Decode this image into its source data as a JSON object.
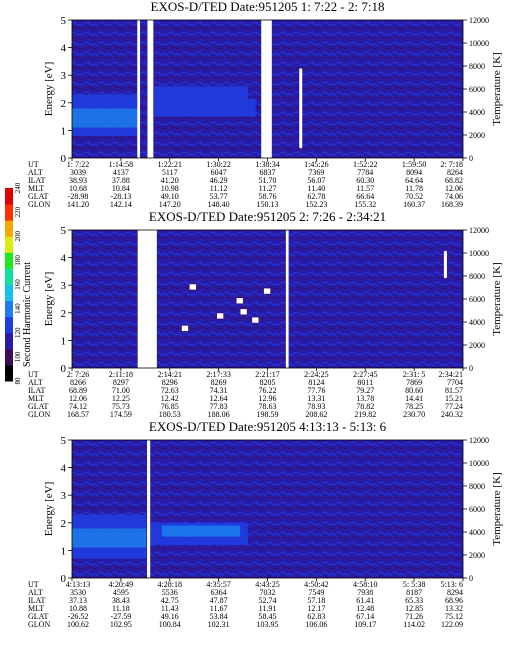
{
  "chart_data": {
    "type": "heatmap",
    "colorbar": {
      "label": "Second Harmonic Current",
      "ticks": [
        "80",
        "100",
        "120",
        "140",
        "160",
        "180",
        "200",
        "220",
        "240"
      ],
      "colors": [
        "#000000",
        "#3c0b5a",
        "#2a1ba6",
        "#1f3de0",
        "#1d7cf0",
        "#18c0ee",
        "#10e0a0",
        "#1ee820",
        "#dcec10",
        "#f5a800",
        "#ff3000",
        "#e00000"
      ]
    },
    "panels": [
      {
        "title": "EXOS-D/TED   Date:951205  1: 7:22 - 2: 7:18",
        "ylabel": "Energy [eV]",
        "y2label": "Temperature [K]",
        "yticks": [
          "0",
          "1",
          "2",
          "3",
          "4",
          "5"
        ],
        "y2ticks": [
          "0",
          "2000",
          "4000",
          "6000",
          "8000",
          "10000",
          "12000"
        ],
        "ylim": [
          0,
          5
        ],
        "y2lim": [
          0,
          12000
        ],
        "table_rows": [
          {
            "name": "UT",
            "values": [
              "1: 7:22",
              "1:14:58",
              "1:22:21",
              "1:30:22",
              "1:38:34",
              "1:45:26",
              "1:52:22",
              "1:59:50",
              "2: 7:18"
            ]
          },
          {
            "name": "ALT",
            "values": [
              "3039",
              "4137",
              "5117",
              "6047",
              "6837",
              "7369",
              "7784",
              "8094",
              "8264"
            ]
          },
          {
            "name": "ILAT",
            "values": [
              "38.93",
              "37.88",
              "41.20",
              "46.29",
              "51.70",
              "56.07",
              "60.30",
              "64.64",
              "68.82"
            ]
          },
          {
            "name": "MLT",
            "values": [
              "10.68",
              "10.84",
              "10.98",
              "11.12",
              "11.27",
              "11.40",
              "11.57",
              "11.78",
              "12.06"
            ]
          },
          {
            "name": "GLAT",
            "values": [
              "-28.98",
              "-28.13",
              "49.10",
              "53.77",
              "58.76",
              "62.78",
              "66.64",
              "70.52",
              "74.06"
            ]
          },
          {
            "name": "GLON",
            "values": [
              "141.20",
              "142.14",
              "147.20",
              "148.40",
              "150.13",
              "152.23",
              "155.32",
              "160.37",
              "168.39"
            ]
          }
        ]
      },
      {
        "title": "EXOS-D/TED   Date:951205  2: 7:26 - 2:34:21",
        "ylabel": "Energy [eV]",
        "y2label": "Temperature [K]",
        "yticks": [
          "0",
          "1",
          "2",
          "3",
          "4",
          "5"
        ],
        "y2ticks": [
          "0",
          "2000",
          "4000",
          "6000",
          "8000",
          "10000",
          "12000"
        ],
        "ylim": [
          0,
          5
        ],
        "y2lim": [
          0,
          12000
        ],
        "table_rows": [
          {
            "name": "UT",
            "values": [
              "2: 7:26",
              "2:11:18",
              "2:14:21",
              "2:17:33",
              "2:21:17",
              "2:24:25",
              "2:27:45",
              "2:31: 5",
              "2:34:21"
            ]
          },
          {
            "name": "ALT",
            "values": [
              "8266",
              "8297",
              "8296",
              "8269",
              "8205",
              "8124",
              "8011",
              "7869",
              "7704"
            ]
          },
          {
            "name": "ILAT",
            "values": [
              "68.89",
              "71.00",
              "72.63",
              "74.31",
              "76.22",
              "77.76",
              "79.27",
              "80.60",
              "81.57"
            ]
          },
          {
            "name": "MLT",
            "values": [
              "12.06",
              "12.25",
              "12.42",
              "12.64",
              "12.96",
              "13.31",
              "13.78",
              "14.41",
              "15.21"
            ]
          },
          {
            "name": "GLAT",
            "values": [
              "74.12",
              "75.73",
              "76.85",
              "77.83",
              "78.63",
              "78.93",
              "78.82",
              "78.25",
              "77.24"
            ]
          },
          {
            "name": "GLON",
            "values": [
              "168.57",
              "174.59",
              "180.53",
              "188.06",
              "198.59",
              "208.62",
              "219.82",
              "230.70",
              "240.32"
            ]
          }
        ]
      },
      {
        "title": "EXOS-D/TED   Date:951205  4:13:13 - 5:13: 6",
        "ylabel": "Energy [eV]",
        "y2label": "Temperature [K]",
        "yticks": [
          "0",
          "1",
          "2",
          "3",
          "4",
          "5"
        ],
        "y2ticks": [
          "0",
          "2000",
          "4000",
          "6000",
          "8000",
          "10000",
          "12000"
        ],
        "ylim": [
          0,
          5
        ],
        "y2lim": [
          0,
          12000
        ],
        "table_rows": [
          {
            "name": "UT",
            "values": [
              "4:13:13",
              "4:20:49",
              "4:28:18",
              "4:35:57",
              "4:43:25",
              "4:50:42",
              "4:58:10",
              "5: 5:38",
              "5:13: 6"
            ]
          },
          {
            "name": "ALT",
            "values": [
              "3530",
              "4595",
              "5536",
              "6364",
              "7032",
              "7549",
              "7938",
              "8187",
              "8294"
            ]
          },
          {
            "name": "ILAT",
            "values": [
              "37.13",
              "38.43",
              "42.75",
              "47.87",
              "52.74",
              "57.18",
              "61.41",
              "65.33",
              "68.96"
            ]
          },
          {
            "name": "MLT",
            "values": [
              "10.88",
              "11.18",
              "11.43",
              "11.67",
              "11.91",
              "12.17",
              "12.48",
              "12.85",
              "13.32"
            ]
          },
          {
            "name": "GLAT",
            "values": [
              "-26.52",
              "-27.59",
              "49.16",
              "53.84",
              "58.45",
              "62.83",
              "67.14",
              "71.26",
              "75.12"
            ]
          },
          {
            "name": "GLON",
            "values": [
              "100.62",
              "102.95",
              "100.84",
              "102.31",
              "103.95",
              "106.06",
              "109.17",
              "114.02",
              "122.09"
            ]
          }
        ]
      }
    ]
  }
}
